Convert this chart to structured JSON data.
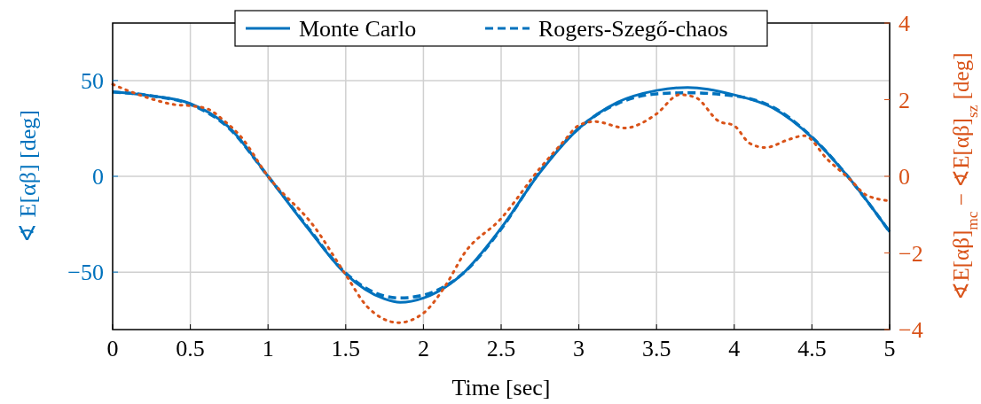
{
  "chart_data": {
    "type": "line",
    "xlabel": "Time [sec]",
    "ylabel": "∢ E[αβ] [deg]",
    "y2label": "∢E[αβ]$_{mc}$ − ∢E[αβ]$_{sz}$ [deg]",
    "xlim": [
      0,
      5
    ],
    "xticks": [
      0,
      0.5,
      1,
      1.5,
      2,
      2.5,
      3,
      3.5,
      4,
      4.5,
      5
    ],
    "ylim": [
      -80,
      80
    ],
    "yticks": [
      -50,
      0,
      50
    ],
    "y2lim": [
      -4,
      4
    ],
    "y2ticks": [
      -4,
      -2,
      0,
      2,
      4
    ],
    "grid": true,
    "legend": "top",
    "marker": "none",
    "series": [
      {
        "name": "Monte Carlo",
        "color": "#0072bd",
        "line_style": "solid",
        "x": [
          0,
          0.25,
          0.5,
          0.75,
          1,
          1.25,
          1.5,
          1.75,
          1.85,
          2,
          2.25,
          2.5,
          2.75,
          3,
          3.25,
          3.5,
          3.7,
          4,
          4.25,
          4.5,
          4.75,
          5
        ],
        "values": [
          44,
          42,
          38,
          25.5,
          0,
          -26.5,
          -51,
          -64,
          -65.8,
          -63.5,
          -51,
          -27,
          2,
          25,
          38.7,
          44.8,
          46.4,
          42.5,
          35.6,
          20.3,
          -2,
          -29
        ]
      },
      {
        "name": "Rogers-Szegő-chaos",
        "color": "#0072bd",
        "line_style": "dashed",
        "x": [
          0,
          0.25,
          0.5,
          0.75,
          1,
          1.25,
          1.5,
          1.75,
          1.85,
          2,
          2.25,
          2.5,
          2.75,
          3,
          3.25,
          3.5,
          3.7,
          4,
          4.25,
          4.5,
          4.75,
          5
        ],
        "values": [
          44,
          42,
          37.5,
          25,
          0,
          -26,
          -50.5,
          -62.5,
          -63.5,
          -62,
          -51,
          -27.5,
          2.5,
          25,
          38,
          43,
          43.6,
          42,
          36,
          20.5,
          -2,
          -29
        ]
      },
      {
        "color": "#d95319",
        "line_style": "dotted",
        "axis": "y2",
        "x": [
          0,
          0.25,
          0.4,
          0.5,
          0.61,
          0.72,
          0.82,
          1,
          1.3,
          1.5,
          1.64,
          1.84,
          2,
          2.15,
          2.26,
          2.5,
          2.75,
          2.9,
          3,
          3.1,
          3.3,
          3.4,
          3.5,
          3.65,
          3.75,
          3.9,
          4,
          4.1,
          4.2,
          4.35,
          4.45,
          4.6,
          4.75,
          4.85,
          5
        ],
        "values": [
          2.4,
          2.02,
          1.87,
          1.84,
          1.76,
          1.44,
          1.06,
          0,
          -1.33,
          -2.57,
          -3.41,
          -3.82,
          -3.57,
          -2.8,
          -2.03,
          -1.1,
          0.21,
          0.9,
          1.33,
          1.43,
          1.26,
          1.38,
          1.63,
          2.13,
          2.06,
          1.44,
          1.32,
          0.86,
          0.75,
          0.96,
          1.06,
          0.44,
          -0.1,
          -0.49,
          -0.64
        ]
      }
    ]
  }
}
